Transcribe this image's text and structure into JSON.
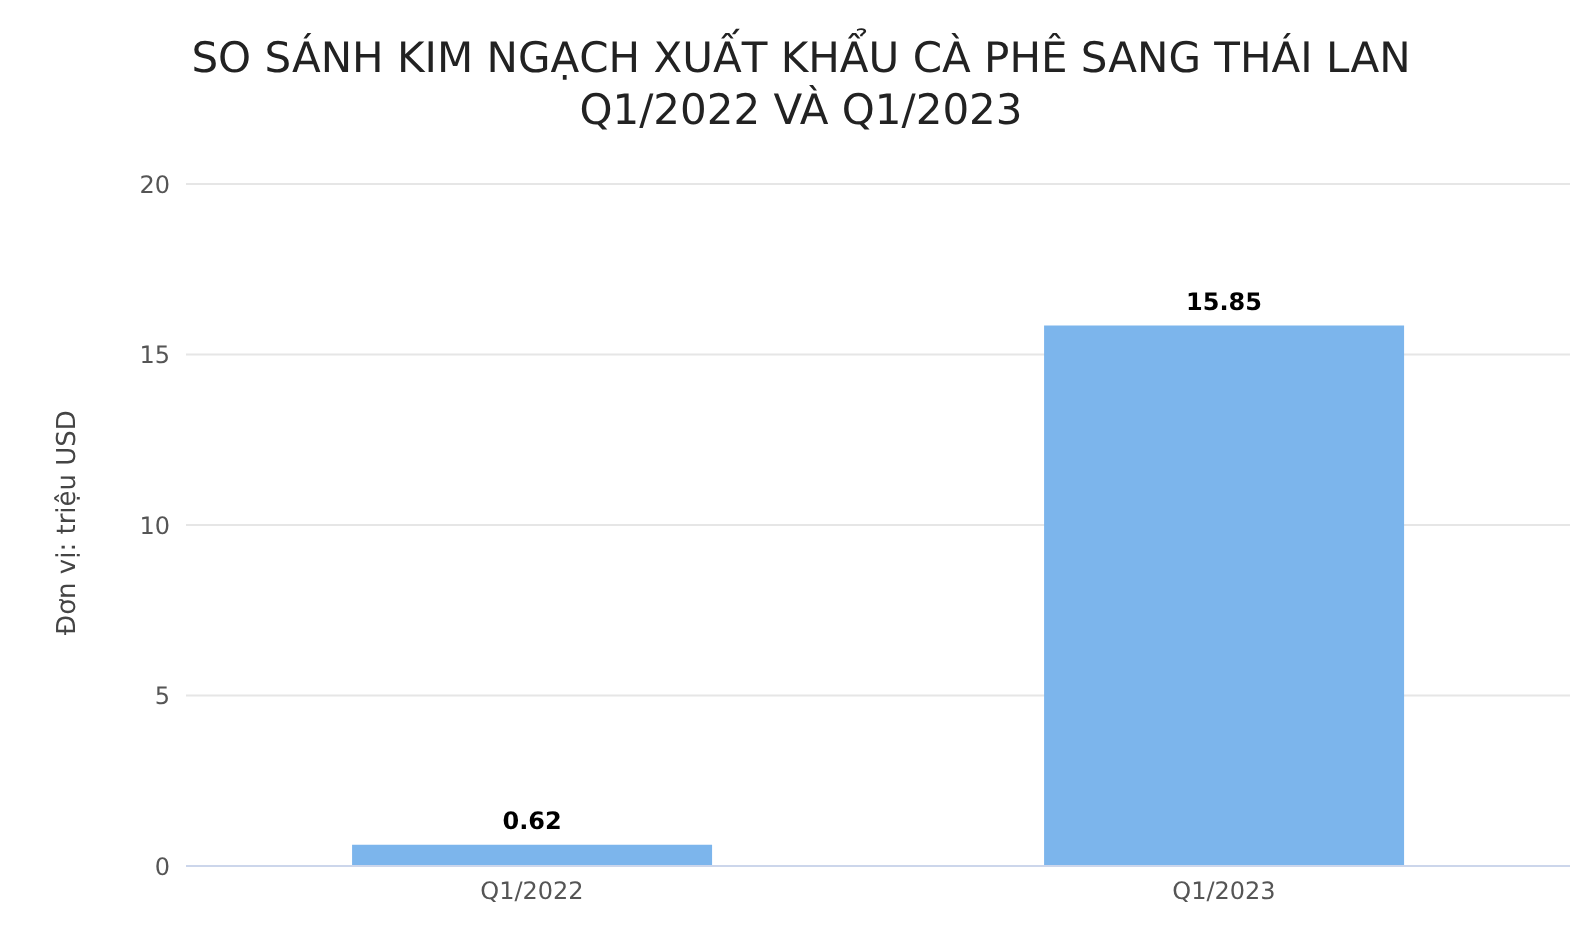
{
  "chart_data": {
    "type": "bar",
    "title": "SO SÁNH KIM NGẠCH XUẤT KHẨU CÀ PHÊ SANG THÁI LAN Q1/2022 VÀ Q1/2023",
    "ylabel": "Đơn vị: triệu USD",
    "categories": [
      "Q1/2022",
      "Q1/2023"
    ],
    "values": [
      0.62,
      15.85
    ],
    "color": "#7cb5ec",
    "ylim": [
      0,
      20
    ],
    "yticks": [
      0,
      5,
      10,
      15,
      20
    ],
    "grid": "y",
    "data_labels": true
  }
}
